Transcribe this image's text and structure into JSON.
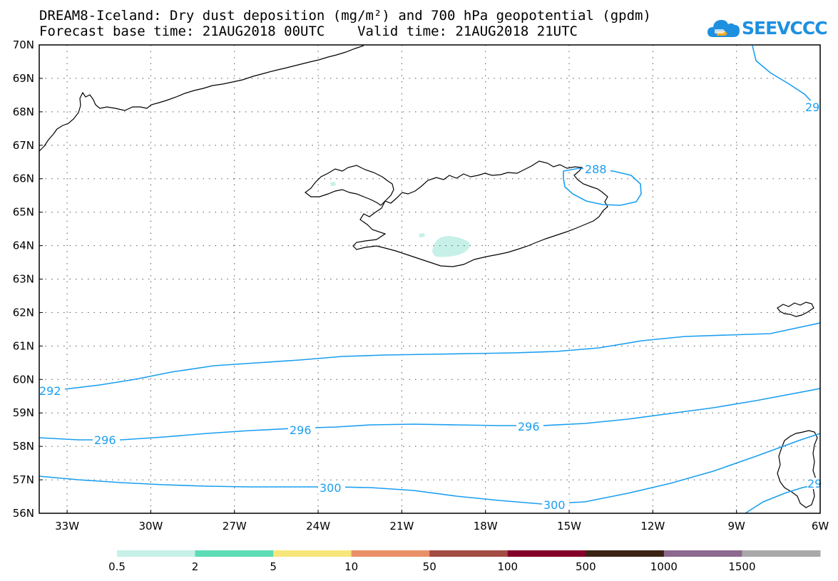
{
  "title": {
    "line1": "DREAM8-Iceland: Dry dust deposition (mg/m²) and 700 hPa geopotential (gpdm)",
    "line2": "Forecast base time: 21AUG2018 00UTC    Valid time: 21AUG2018 21UTC"
  },
  "logo": {
    "text": "SEEVCCC",
    "icon": "cloud-logo-icon",
    "color": "#1e90e0",
    "accent": "#f5a623"
  },
  "map": {
    "lon_range": [
      -34,
      -6
    ],
    "lat_range": [
      56,
      70
    ],
    "lat_labels": [
      "56N",
      "57N",
      "58N",
      "59N",
      "60N",
      "61N",
      "62N",
      "63N",
      "64N",
      "65N",
      "66N",
      "67N",
      "68N",
      "69N",
      "70N"
    ],
    "lon_labels": [
      "33W",
      "30W",
      "27W",
      "24W",
      "21W",
      "18W",
      "15W",
      "12W",
      "9W",
      "6W"
    ],
    "contour_color": "#1a9ef0",
    "contour_labels": [
      "288",
      "292",
      "296",
      "296",
      "296",
      "300",
      "300",
      "29",
      "29"
    ],
    "dust_fill_color": "#c6f0e8"
  },
  "legend": {
    "colors": [
      "#c6f0e8",
      "#5ddcb5",
      "#f7e67a",
      "#ea9068",
      "#a34c43",
      "#830028",
      "#3b2414",
      "#8d6990",
      "#a9a9a9"
    ],
    "labels": [
      "0.5",
      "2",
      "5",
      "10",
      "50",
      "100",
      "500",
      "1000",
      "1500"
    ]
  }
}
